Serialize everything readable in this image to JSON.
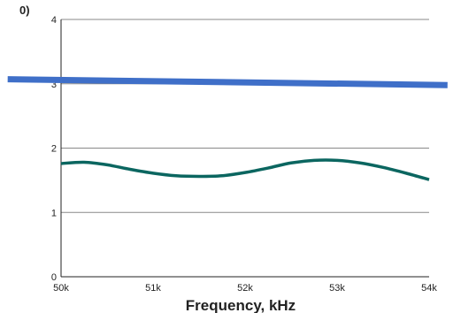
{
  "chart_data": {
    "type": "line",
    "title": "",
    "clipped_text": "0)",
    "xlabel": "Frequency, kHz",
    "ylabel": "",
    "xlim": [
      50,
      54
    ],
    "ylim": [
      0,
      4
    ],
    "x_ticks": [
      50,
      51,
      52,
      53,
      54
    ],
    "x_tick_labels": [
      "50k",
      "51k",
      "52k",
      "53k",
      "54k"
    ],
    "y_ticks": [
      0,
      1,
      2,
      3,
      4
    ],
    "y_tick_labels": [
      "0",
      "1",
      "2",
      "3",
      "4"
    ],
    "grid": "horizontal",
    "series": [
      {
        "color": "#3f6fc8",
        "x": [
          49.42,
          54.2
        ],
        "y": [
          3.07,
          2.98
        ]
      },
      {
        "color": "#0b6660",
        "x": [
          50.0,
          50.25,
          50.5,
          50.75,
          51.0,
          51.25,
          51.5,
          51.75,
          52.0,
          52.25,
          52.5,
          52.75,
          53.0,
          53.25,
          53.5,
          53.75,
          54.0
        ],
        "y": [
          1.76,
          1.78,
          1.74,
          1.67,
          1.61,
          1.57,
          1.56,
          1.57,
          1.62,
          1.69,
          1.77,
          1.81,
          1.81,
          1.77,
          1.7,
          1.61,
          1.51
        ]
      }
    ]
  }
}
